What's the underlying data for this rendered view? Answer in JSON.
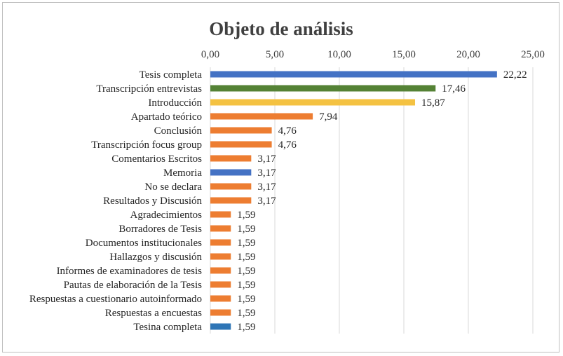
{
  "chart_data": {
    "type": "bar",
    "orientation": "horizontal",
    "title": "Objeto de análisis",
    "xlabel": "",
    "ylabel": "",
    "xlim": [
      0,
      25
    ],
    "x_ticks": [
      "0,00",
      "5,00",
      "10,00",
      "15,00",
      "20,00",
      "25,00"
    ],
    "x_axis_position": "top",
    "grid": true,
    "categories": [
      "Tesis completa",
      "Transcripción entrevistas",
      "Introducción",
      "Apartado teórico",
      "Conclusión",
      "Transcripción focus group",
      "Comentarios Escritos",
      "Memoria",
      "No se declara",
      "Resultados y Discusión",
      "Agradecimientos",
      "Borradores de Tesis",
      "Documentos institucionales",
      "Hallazgos y discusión",
      "Informes de examinadores de tesis",
      "Pautas de elaboración de la Tesis",
      "Respuestas a cuestionario autoinformado",
      "Respuestas a encuestas",
      "Tesina completa"
    ],
    "values": [
      22.22,
      17.46,
      15.87,
      7.94,
      4.76,
      4.76,
      3.17,
      3.17,
      3.17,
      3.17,
      1.59,
      1.59,
      1.59,
      1.59,
      1.59,
      1.59,
      1.59,
      1.59,
      1.59
    ],
    "value_labels": [
      "22,22",
      "17,46",
      "15,87",
      "7,94",
      "4,76",
      "4,76",
      "3,17",
      "3,17",
      "3,17",
      "3,17",
      "1,59",
      "1,59",
      "1,59",
      "1,59",
      "1,59",
      "1,59",
      "1,59",
      "1,59",
      "1,59"
    ],
    "colors": [
      "#4472c4",
      "#548235",
      "#f4c242",
      "#ed7d31",
      "#ed7d31",
      "#ed7d31",
      "#ed7d31",
      "#4472c4",
      "#ed7d31",
      "#ed7d31",
      "#ed7d31",
      "#ed7d31",
      "#ed7d31",
      "#ed7d31",
      "#ed7d31",
      "#ed7d31",
      "#ed7d31",
      "#ed7d31",
      "#2e75b6"
    ]
  }
}
